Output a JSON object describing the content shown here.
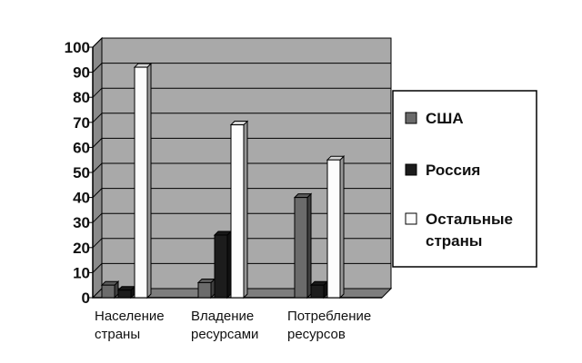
{
  "chart_data": {
    "type": "bar",
    "categories": [
      [
        "Население",
        "страны"
      ],
      [
        "Владение",
        "ресурсами"
      ],
      [
        "Потребление",
        "ресурсов"
      ]
    ],
    "series": [
      {
        "name": "США",
        "values": [
          5,
          6,
          40
        ],
        "color": "#6b6b6b"
      },
      {
        "name": "Россия",
        "values": [
          3,
          25,
          5
        ],
        "color": "#1c1c1c"
      },
      {
        "name": [
          "Остальные",
          "страны"
        ],
        "values": [
          92,
          69,
          55
        ],
        "color": "#fcfcfc"
      }
    ],
    "yticks": [
      "0",
      "10",
      "20",
      "30",
      "40",
      "50",
      "60",
      "70",
      "80",
      "90",
      "100"
    ],
    "ylim": [
      0,
      100
    ],
    "grid": true,
    "plot_background": "#a9a9a9",
    "legend_position": "right",
    "style": "3d-column"
  }
}
